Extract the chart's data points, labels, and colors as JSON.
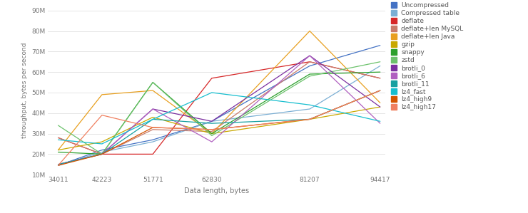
{
  "x": [
    34011,
    42223,
    51771,
    62830,
    81207,
    94417
  ],
  "series": {
    "Uncompressed": [
      14500000.0,
      22000000.0,
      27000000.0,
      36000000.0,
      63000000.0,
      73000000.0
    ],
    "Compressed table": [
      14500000.0,
      21000000.0,
      26000000.0,
      36000000.0,
      42000000.0,
      63000000.0
    ],
    "deflate": [
      28000000.0,
      20000000.0,
      20000000.0,
      57000000.0,
      65000000.0,
      57000000.0
    ],
    "deflate+len MySQL": [
      28000000.0,
      20000000.0,
      32000000.0,
      31000000.0,
      65000000.0,
      57000000.0
    ],
    "deflate+len Java": [
      22000000.0,
      49000000.0,
      51000000.0,
      30000000.0,
      80000000.0,
      45000000.0
    ],
    "gzip": [
      22000000.0,
      26000000.0,
      38000000.0,
      30000000.0,
      37000000.0,
      43000000.0
    ],
    "snappy": [
      21000000.0,
      20000000.0,
      55000000.0,
      30000000.0,
      59000000.0,
      60000000.0
    ],
    "zstd": [
      34000000.0,
      20000000.0,
      55000000.0,
      29000000.0,
      58000000.0,
      65000000.0
    ],
    "brotli_0": [
      15000000.0,
      20000000.0,
      42000000.0,
      36000000.0,
      68000000.0,
      43000000.0
    ],
    "brotli_6": [
      15000000.0,
      20000000.0,
      42000000.0,
      26000000.0,
      68000000.0,
      35000000.0
    ],
    "brotli_11": [
      15000000.0,
      20000000.0,
      37000000.0,
      35000000.0,
      37000000.0,
      51000000.0
    ],
    "lz4_fast": [
      27000000.0,
      25000000.0,
      37000000.0,
      50000000.0,
      44000000.0,
      36000000.0
    ],
    "lz4_high9": [
      14500000.0,
      20000000.0,
      33000000.0,
      32000000.0,
      37000000.0,
      51000000.0
    ],
    "lz4_high17": [
      14500000.0,
      39000000.0,
      33000000.0,
      32000000.0,
      37000000.0,
      51000000.0
    ]
  },
  "colors": {
    "Uncompressed": "#4472c4",
    "Compressed table": "#7bafd4",
    "deflate": "#d62728",
    "deflate+len MySQL": "#c97b6a",
    "deflate+len Java": "#e8a020",
    "gzip": "#c9a800",
    "snappy": "#2ca02c",
    "zstd": "#6cc26c",
    "brotli_0": "#7b2fa0",
    "brotli_6": "#b060c0",
    "brotli_11": "#17a0a0",
    "lz4_fast": "#17becf",
    "lz4_high9": "#d45500",
    "lz4_high17": "#f08060"
  },
  "ylabel": "throughput, bytes per second",
  "xlabel": "Data length, bytes",
  "yticks": [
    10000000.0,
    20000000.0,
    30000000.0,
    40000000.0,
    50000000.0,
    60000000.0,
    70000000.0,
    80000000.0,
    90000000.0
  ],
  "ytick_labels": [
    "10M",
    "20M",
    "30M",
    "40M",
    "50M",
    "60M",
    "70M",
    "80M",
    "90M"
  ],
  "ylim": [
    10000000.0,
    92000000.0
  ],
  "background_color": "#ffffff",
  "grid_color": "#e0e0e0"
}
